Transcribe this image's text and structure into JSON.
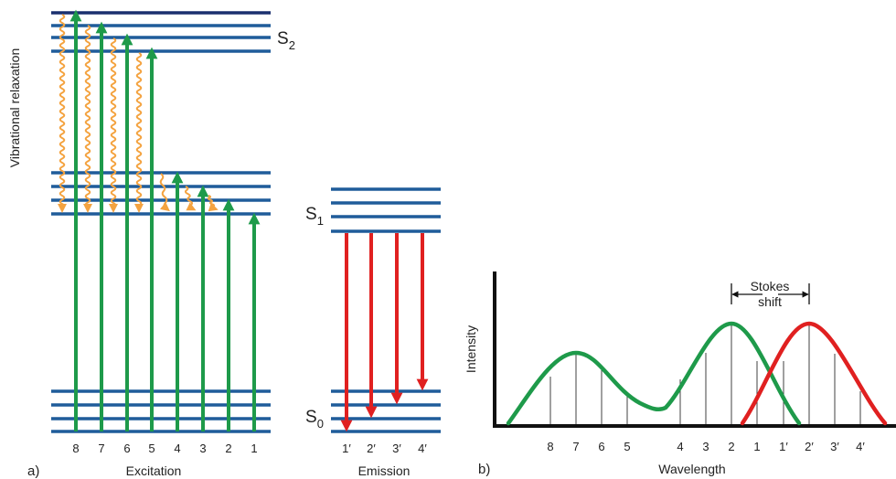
{
  "panel_a": {
    "vertical_label": "Vibrational relaxation",
    "s2": "S",
    "s2_sub": "2",
    "s1": "S",
    "s1_sub": "1",
    "s0": "S",
    "s0_sub": "0",
    "excitation_numbers": [
      "8",
      "7",
      "6",
      "5",
      "4",
      "3",
      "2",
      "1"
    ],
    "emission_numbers": [
      "1′",
      "2′",
      "3′",
      "4′"
    ],
    "excitation_label": "Excitation",
    "emission_label": "Emission",
    "panel_letter": "a)"
  },
  "panel_b": {
    "ylabel": "Intensity",
    "xlabel": "Wavelength",
    "stokes_line1": "Stokes",
    "stokes_line2": "shift",
    "tick_labels": [
      "8",
      "7",
      "6",
      "5",
      "4",
      "3",
      "2",
      "1",
      "1′",
      "2′",
      "3′",
      "4′"
    ],
    "panel_letter": "b)"
  },
  "colors": {
    "level": "#1f5c9a",
    "level_top": "#1a2f6e",
    "excitation": "#1e9a4a",
    "emission": "#e02020",
    "relaxation": "#f4a340",
    "axis": "#111111"
  }
}
